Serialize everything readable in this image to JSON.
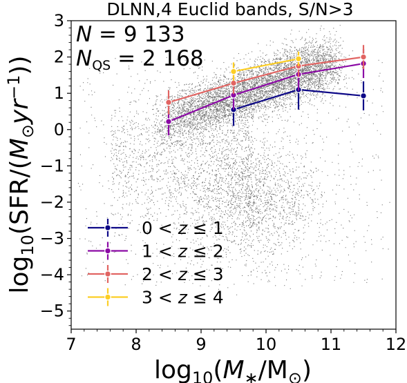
{
  "chart_data": {
    "type": "scatter",
    "title": "DLNN,4 Euclid bands, S/N>3",
    "xlabel_parts": [
      "log",
      "10",
      "(",
      "M",
      "∗",
      "/M",
      "⊙",
      ")"
    ],
    "ylabel_parts": [
      "log",
      "10",
      "(SFR/(",
      "M",
      "⊙",
      "yr",
      "−1",
      "))"
    ],
    "xlim": [
      7,
      12
    ],
    "ylim": [
      -5.5,
      3
    ],
    "xticks": [
      7,
      8,
      9,
      10,
      11,
      12
    ],
    "yticks": [
      -5,
      -4,
      -3,
      -2,
      -1,
      0,
      1,
      2,
      3
    ],
    "ytick_labels": [
      "−5",
      "−4",
      "−3",
      "−2",
      "−1",
      "0",
      "1",
      "2",
      "3"
    ],
    "annotations": [
      {
        "var": "N",
        "sub": "",
        "eq": " = 9 133"
      },
      {
        "var": "N",
        "sub": "QS",
        "eq": " = 2 168"
      }
    ],
    "legend_position": "lower-left",
    "scatter_points": 9133,
    "series": [
      {
        "name_lo": "0",
        "name_hi": "1",
        "color": "#0d0887",
        "x": [
          9.5,
          10.5,
          11.5
        ],
        "y": [
          0.55,
          1.1,
          0.93
        ],
        "yerr": [
          [
            0.45,
            0.55,
            0.4
          ],
          [
            0.45,
            0.55,
            0.4
          ]
        ]
      },
      {
        "name_lo": "1",
        "name_hi": "2",
        "color": "#8b0aa5",
        "x": [
          8.5,
          9.5,
          10.5,
          11.5
        ],
        "y": [
          0.22,
          0.95,
          1.52,
          1.82
        ],
        "yerr": [
          [
            0.38,
            0.4,
            0.45,
            0.4
          ],
          [
            0.38,
            0.4,
            0.45,
            0.4
          ]
        ]
      },
      {
        "name_lo": "2",
        "name_hi": "3",
        "color": "#e16462",
        "x": [
          8.5,
          9.5,
          10.5,
          11.5
        ],
        "y": [
          0.75,
          1.28,
          1.75,
          2.0
        ],
        "yerr": [
          [
            0.33,
            0.3,
            0.3,
            0.33
          ],
          [
            0.33,
            0.3,
            0.3,
            0.33
          ]
        ]
      },
      {
        "name_lo": "3",
        "name_hi": "4",
        "color": "#fcce25",
        "x": [
          9.5,
          10.5
        ],
        "y": [
          1.6,
          1.95
        ],
        "yerr": [
          [
            0.25,
            0.2
          ],
          [
            0.25,
            0.2
          ]
        ]
      }
    ]
  }
}
